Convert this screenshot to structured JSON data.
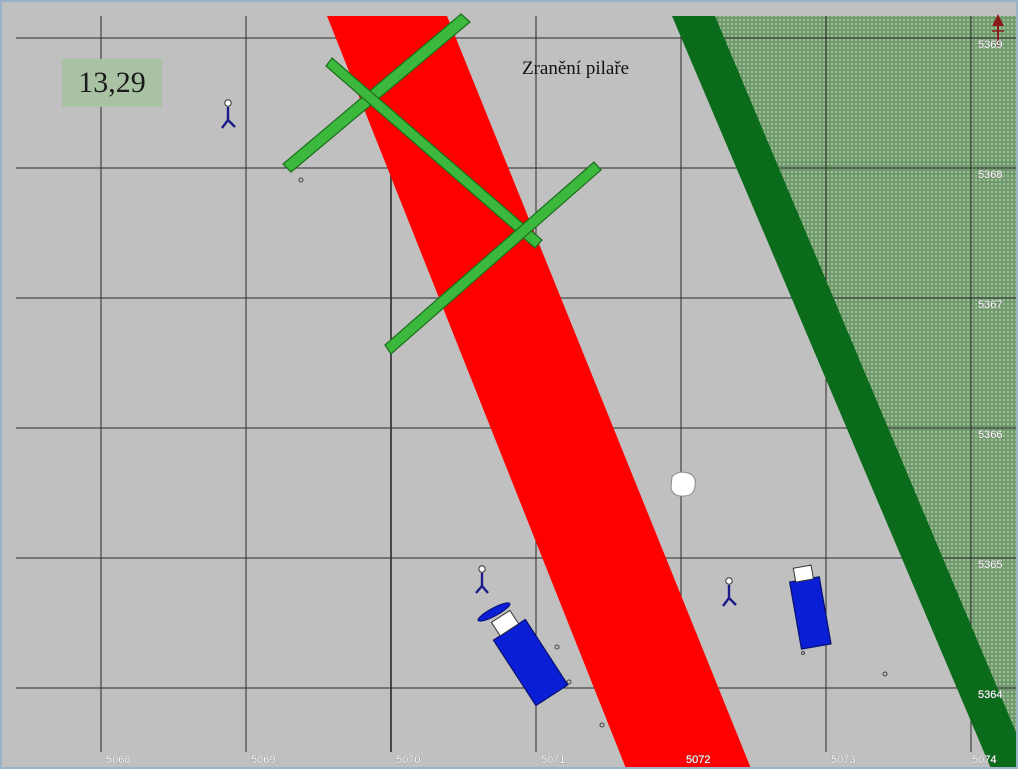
{
  "overlay": {
    "time_value": "13,29",
    "title": "Zranění pilaře"
  },
  "grid": {
    "x_labels": [
      "5068",
      "5069",
      "5070",
      "5071",
      "5072",
      "5073",
      "5074"
    ],
    "y_labels": [
      "5369",
      "5368",
      "5367",
      "5366",
      "5365",
      "5364"
    ]
  },
  "colors": {
    "background": "#c0c0c0",
    "grid_line": "#2a2a2a",
    "red_strip": "#ff0000",
    "dark_green_strip": "#0a6b1a",
    "hatched_area": "#7fa57a",
    "felled_logs": "#3cb83c",
    "machines": "#0a1ed6",
    "persons": "#1a1a8a"
  },
  "symbols": {
    "person": "person-icon",
    "machine": "harvester-icon",
    "north_arrow": "north-arrow-icon",
    "debris": "debris-icon"
  }
}
